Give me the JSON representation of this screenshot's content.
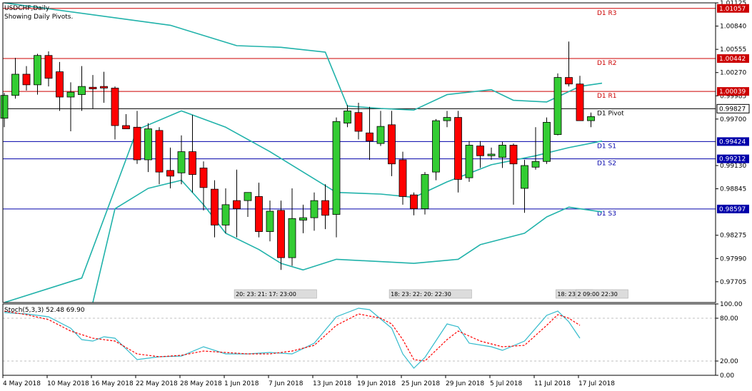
{
  "symbol_title": "USDCHF,Daily",
  "indicator_note": "Showing Daily Pivots.",
  "stoch_label": "Stoch(5,3,3) 52.48 69.90",
  "colors": {
    "bull": "#33cc33",
    "bear": "#ff0000",
    "bollinger": "#20b2aa",
    "resistance": "#cc0000",
    "support": "#0000aa",
    "pivot": "#000000",
    "stoch_main": "#33bbcc",
    "stoch_signal": "#ff0000"
  },
  "chart_data": [
    {
      "type": "candlestick",
      "title": "USDCHF,Daily",
      "ylim": [
        0.9745,
        1.01125
      ],
      "yticks": [
        "1.01125",
        "1.00840",
        "1.00555",
        "1.00270",
        "0.99985",
        "0.99700",
        "0.99130",
        "0.98845",
        "0.98275",
        "0.97990",
        "0.97705"
      ],
      "xticks": [
        "4 May 2018",
        "10 May 2018",
        "16 May 2018",
        "22 May 2018",
        "28 May 2018",
        "1 Jun 2018",
        "7 Jun 2018",
        "13 Jun 2018",
        "19 Jun 2018",
        "25 Jun 2018",
        "29 Jun 2018",
        "5 Jul 2018",
        "11 Jul 2018",
        "17 Jul 2018"
      ],
      "grid": false,
      "candles": [
        {
          "o": 0.9971,
          "h": 1.0002,
          "l": 0.996,
          "c": 0.9999
        },
        {
          "o": 0.9999,
          "h": 1.0045,
          "l": 0.9995,
          "c": 1.0025
        },
        {
          "o": 1.0025,
          "h": 1.0035,
          "l": 1.0005,
          "c": 1.0012
        },
        {
          "o": 1.0012,
          "h": 1.005,
          "l": 1.0,
          "c": 1.0048
        },
        {
          "o": 1.0048,
          "h": 1.0053,
          "l": 1.001,
          "c": 1.002
        },
        {
          "o": 1.0028,
          "h": 1.004,
          "l": 0.998,
          "c": 0.9997
        },
        {
          "o": 0.9997,
          "h": 1.0015,
          "l": 0.9955,
          "c": 1.0003
        },
        {
          "o": 1.0,
          "h": 1.0035,
          "l": 0.998,
          "c": 1.001
        },
        {
          "o": 1.0009,
          "h": 1.0024,
          "l": 0.9983,
          "c": 1.0007
        },
        {
          "o": 1.001,
          "h": 1.0028,
          "l": 0.999,
          "c": 1.0008
        },
        {
          "o": 1.0008,
          "h": 1.001,
          "l": 0.9945,
          "c": 0.9962
        },
        {
          "o": 0.9962,
          "h": 0.9976,
          "l": 0.9958,
          "c": 0.9958
        },
        {
          "o": 0.996,
          "h": 0.998,
          "l": 0.9915,
          "c": 0.992
        },
        {
          "o": 0.992,
          "h": 0.9965,
          "l": 0.9905,
          "c": 0.9958
        },
        {
          "o": 0.9956,
          "h": 0.996,
          "l": 0.989,
          "c": 0.9905
        },
        {
          "o": 0.9907,
          "h": 0.9935,
          "l": 0.9885,
          "c": 0.99
        },
        {
          "o": 0.9904,
          "h": 0.995,
          "l": 0.989,
          "c": 0.993
        },
        {
          "o": 0.993,
          "h": 0.9975,
          "l": 0.988,
          "c": 0.9902
        },
        {
          "o": 0.991,
          "h": 0.9918,
          "l": 0.9858,
          "c": 0.9886
        },
        {
          "o": 0.9884,
          "h": 0.9895,
          "l": 0.9825,
          "c": 0.984
        },
        {
          "o": 0.984,
          "h": 0.9885,
          "l": 0.983,
          "c": 0.9865
        },
        {
          "o": 0.987,
          "h": 0.9908,
          "l": 0.9825,
          "c": 0.986
        },
        {
          "o": 0.987,
          "h": 0.988,
          "l": 0.985,
          "c": 0.988
        },
        {
          "o": 0.9875,
          "h": 0.9892,
          "l": 0.9825,
          "c": 0.9832
        },
        {
          "o": 0.9832,
          "h": 0.987,
          "l": 0.982,
          "c": 0.9857
        },
        {
          "o": 0.9858,
          "h": 0.987,
          "l": 0.9785,
          "c": 0.98
        },
        {
          "o": 0.98,
          "h": 0.9885,
          "l": 0.979,
          "c": 0.9848
        },
        {
          "o": 0.9846,
          "h": 0.9865,
          "l": 0.983,
          "c": 0.9849
        },
        {
          "o": 0.9849,
          "h": 0.988,
          "l": 0.9833,
          "c": 0.987
        },
        {
          "o": 0.987,
          "h": 0.989,
          "l": 0.9835,
          "c": 0.9852
        },
        {
          "o": 0.9853,
          "h": 0.9972,
          "l": 0.9825,
          "c": 0.9967
        },
        {
          "o": 0.9965,
          "h": 0.9987,
          "l": 0.996,
          "c": 0.998
        },
        {
          "o": 0.9978,
          "h": 0.999,
          "l": 0.9945,
          "c": 0.9955
        },
        {
          "o": 0.9953,
          "h": 0.9985,
          "l": 0.992,
          "c": 0.9943
        },
        {
          "o": 0.994,
          "h": 0.998,
          "l": 0.9937,
          "c": 0.9961
        },
        {
          "o": 0.9963,
          "h": 0.998,
          "l": 0.99,
          "c": 0.9915
        },
        {
          "o": 0.992,
          "h": 0.993,
          "l": 0.9865,
          "c": 0.9875
        },
        {
          "o": 0.9877,
          "h": 0.988,
          "l": 0.9852,
          "c": 0.986
        },
        {
          "o": 0.986,
          "h": 0.9905,
          "l": 0.9853,
          "c": 0.9902
        },
        {
          "o": 0.9905,
          "h": 0.997,
          "l": 0.9895,
          "c": 0.9968
        },
        {
          "o": 0.9968,
          "h": 0.998,
          "l": 0.996,
          "c": 0.9972
        },
        {
          "o": 0.9972,
          "h": 0.998,
          "l": 0.988,
          "c": 0.9896
        },
        {
          "o": 0.9898,
          "h": 0.9943,
          "l": 0.9893,
          "c": 0.9938
        },
        {
          "o": 0.9937,
          "h": 0.9943,
          "l": 0.991,
          "c": 0.9925
        },
        {
          "o": 0.9925,
          "h": 0.9935,
          "l": 0.992,
          "c": 0.9927
        },
        {
          "o": 0.9923,
          "h": 0.9942,
          "l": 0.991,
          "c": 0.9938
        },
        {
          "o": 0.9938,
          "h": 0.994,
          "l": 0.9865,
          "c": 0.9915
        },
        {
          "o": 0.9885,
          "h": 0.992,
          "l": 0.9855,
          "c": 0.9913
        },
        {
          "o": 0.9911,
          "h": 0.996,
          "l": 0.9908,
          "c": 0.9918
        },
        {
          "o": 0.9918,
          "h": 0.9972,
          "l": 0.9915,
          "c": 0.9966
        },
        {
          "o": 0.9951,
          "h": 1.0026,
          "l": 0.995,
          "c": 1.0021
        },
        {
          "o": 1.0021,
          "h": 1.0065,
          "l": 1.001,
          "c": 1.0013
        },
        {
          "o": 1.0013,
          "h": 1.0023,
          "l": 0.997,
          "c": 0.9968
        },
        {
          "o": 0.9968,
          "h": 0.9978,
          "l": 0.996,
          "c": 0.9973
        }
      ],
      "bollinger": {
        "upper": [
          [
            0,
            1.0211
          ],
          [
            15,
            1.0085
          ],
          [
            21,
            1.006
          ],
          [
            25,
            1.0058
          ],
          [
            29,
            1.0052
          ],
          [
            31,
            0.9986
          ],
          [
            34,
            0.9983
          ],
          [
            37,
            0.9981
          ],
          [
            40,
            1.0
          ],
          [
            44,
            1.0006
          ],
          [
            46,
            0.9993
          ],
          [
            49,
            0.9991
          ],
          [
            52,
            1.001
          ],
          [
            54,
            1.0014
          ]
        ],
        "middle": [
          [
            0,
            0.9651
          ],
          [
            7,
            0.9775
          ],
          [
            12,
            0.9957
          ],
          [
            16,
            0.998
          ],
          [
            20,
            0.996
          ],
          [
            24,
            0.993
          ],
          [
            30,
            0.988
          ],
          [
            34,
            0.9878
          ],
          [
            37,
            0.9874
          ],
          [
            40,
            0.9893
          ],
          [
            44,
            0.9914
          ],
          [
            48,
            0.9925
          ],
          [
            51,
            0.9935
          ],
          [
            54,
            0.9943
          ]
        ],
        "lower": [
          [
            8,
            0.9651
          ],
          [
            10,
            0.986
          ],
          [
            13,
            0.9885
          ],
          [
            16,
            0.9895
          ],
          [
            18,
            0.9865
          ],
          [
            20,
            0.983
          ],
          [
            23,
            0.981
          ],
          [
            25,
            0.9793
          ],
          [
            27,
            0.9785
          ],
          [
            30,
            0.9798
          ],
          [
            37,
            0.9793
          ],
          [
            41,
            0.9798
          ],
          [
            43,
            0.9816
          ],
          [
            47,
            0.983
          ],
          [
            49,
            0.985
          ],
          [
            51,
            0.9862
          ],
          [
            54,
            0.9856
          ]
        ]
      },
      "pivot_levels": [
        {
          "name": "D1 R3",
          "value": 1.01057,
          "kind": "resistance"
        },
        {
          "name": "D1 R2",
          "value": 1.00442,
          "kind": "resistance"
        },
        {
          "name": "D1 R1",
          "value": 1.00039,
          "kind": "resistance"
        },
        {
          "name": "D1 Pivot",
          "value": 0.99827,
          "kind": "pivot"
        },
        {
          "name": "D1 S1",
          "value": 0.99424,
          "kind": "support"
        },
        {
          "name": "D1 S2",
          "value": 0.99212,
          "kind": "support"
        },
        {
          "name": "D1 S3",
          "value": 0.98597,
          "kind": "support"
        }
      ],
      "session_labels": [
        {
          "bar": 24.5,
          "text": "20: 23: 21: 17: 23:00"
        },
        {
          "bar": 38.5,
          "text": "18: 23: 22: 20: 22:30"
        },
        {
          "bar": 51.5,
          "text": "18: 23:30"
        },
        {
          "bar": 54,
          "text": "2 09:00 22:30"
        }
      ]
    },
    {
      "type": "line",
      "title": "Stoch(5,3,3) 52.48 69.90",
      "ylim": [
        0,
        100
      ],
      "yticks": [
        "100.00",
        "80.00",
        "20.00",
        "0.00"
      ],
      "levels": [
        80,
        20
      ],
      "series": [
        {
          "name": "main",
          "points": [
            [
              0,
              88
            ],
            [
              2,
              86
            ],
            [
              4,
              82
            ],
            [
              6,
              66
            ],
            [
              7,
              50
            ],
            [
              8,
              48
            ],
            [
              9,
              54
            ],
            [
              10,
              52
            ],
            [
              12,
              22
            ],
            [
              14,
              26
            ],
            [
              16,
              27
            ],
            [
              18,
              40
            ],
            [
              20,
              30
            ],
            [
              22,
              30
            ],
            [
              24,
              32
            ],
            [
              26,
              30
            ],
            [
              28,
              45
            ],
            [
              30,
              82
            ],
            [
              32,
              94
            ],
            [
              33,
              92
            ],
            [
              35,
              66
            ],
            [
              36,
              30
            ],
            [
              37,
              10
            ],
            [
              38,
              25
            ],
            [
              40,
              72
            ],
            [
              41,
              68
            ],
            [
              42,
              45
            ],
            [
              44,
              40
            ],
            [
              45,
              35
            ],
            [
              47,
              48
            ],
            [
              49,
              84
            ],
            [
              50,
              90
            ],
            [
              51,
              75
            ],
            [
              52,
              52
            ]
          ]
        },
        {
          "name": "signal",
          "points": [
            [
              0,
              90
            ],
            [
              2,
              85
            ],
            [
              4,
              78
            ],
            [
              6,
              62
            ],
            [
              8,
              52
            ],
            [
              10,
              48
            ],
            [
              12,
              30
            ],
            [
              14,
              26
            ],
            [
              16,
              28
            ],
            [
              18,
              34
            ],
            [
              20,
              32
            ],
            [
              22,
              30
            ],
            [
              24,
              30
            ],
            [
              26,
              34
            ],
            [
              28,
              42
            ],
            [
              30,
              70
            ],
            [
              32,
              86
            ],
            [
              34,
              80
            ],
            [
              35,
              72
            ],
            [
              36,
              50
            ],
            [
              37,
              22
            ],
            [
              38,
              20
            ],
            [
              40,
              50
            ],
            [
              41,
              62
            ],
            [
              43,
              48
            ],
            [
              45,
              40
            ],
            [
              47,
              42
            ],
            [
              49,
              70
            ],
            [
              50,
              85
            ],
            [
              51,
              80
            ],
            [
              52,
              70
            ]
          ]
        }
      ]
    }
  ]
}
